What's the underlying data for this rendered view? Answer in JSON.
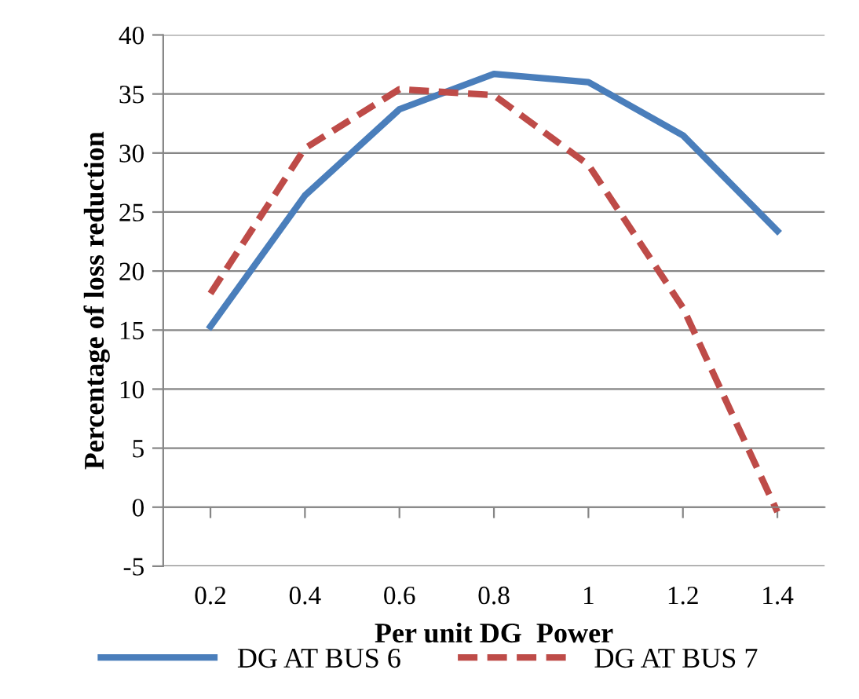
{
  "chart_data": {
    "type": "line",
    "xlabel": "Per unit DG  Power",
    "ylabel": "Percentage of loss reduction",
    "categories": [
      "0.2",
      "0.4",
      "0.6",
      "0.8",
      "1",
      "1.2",
      "1.4"
    ],
    "series": [
      {
        "name": "DG AT BUS 6",
        "color": "#4a7ebb",
        "line_style": "solid",
        "values": [
          15.3,
          26.4,
          33.7,
          36.7,
          36.0,
          31.5,
          23.4
        ]
      },
      {
        "name": "DG AT BUS 7",
        "color": "#be4b48",
        "line_style": "dashed",
        "values": [
          18.1,
          30.4,
          35.4,
          34.9,
          29.0,
          16.9,
          -0.4
        ]
      }
    ],
    "ylim": [
      -5,
      40
    ],
    "yticks": [
      -5,
      0,
      5,
      10,
      15,
      20,
      25,
      30,
      35,
      40
    ],
    "grid": "y",
    "legend": "bottom"
  }
}
